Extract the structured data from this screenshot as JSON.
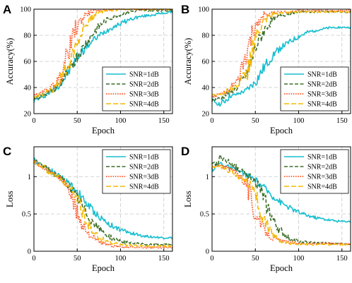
{
  "colors": {
    "SNR=1dB": "#17becf",
    "SNR=2dB": "#3f6f2a",
    "SNR=3dB": "#ff5a2a",
    "SNR=4dB": "#f5b800"
  },
  "chart_data": [
    {
      "panel": "A",
      "type": "line",
      "xlabel": "Epoch",
      "ylabel": "Accuracy(%)",
      "xlim": [
        0,
        160
      ],
      "ylim": [
        20,
        100
      ],
      "xticks": [
        "0",
        "50",
        "100",
        "150"
      ],
      "xtick_values": [
        0,
        50,
        100,
        150
      ],
      "yticks": [
        "20",
        "40",
        "60",
        "80",
        "100"
      ],
      "ytick_values": [
        20,
        40,
        60,
        80,
        100
      ],
      "grid": true,
      "legend_position": "lower-right",
      "x": [
        0,
        10,
        20,
        30,
        40,
        50,
        60,
        70,
        80,
        90,
        100,
        110,
        120,
        130,
        140,
        150,
        160
      ],
      "series": [
        {
          "name": "SNR=1dB",
          "style": "solid",
          "values": [
            30,
            33,
            37,
            42,
            52,
            63,
            71,
            77,
            82,
            86,
            89,
            92,
            94,
            95,
            96,
            97,
            98
          ]
        },
        {
          "name": "SNR=2dB",
          "style": "dashed",
          "values": [
            31,
            34,
            37,
            43,
            53,
            64,
            74,
            83,
            90,
            94,
            96,
            98,
            99,
            99,
            99,
            99,
            99
          ]
        },
        {
          "name": "SNR=3dB",
          "style": "dotted",
          "values": [
            34,
            36,
            40,
            48,
            68,
            88,
            96,
            99,
            99,
            100,
            100,
            100,
            100,
            100,
            100,
            100,
            100
          ]
        },
        {
          "name": "SNR=4dB",
          "style": "longdash",
          "values": [
            32,
            35,
            38,
            45,
            58,
            75,
            88,
            96,
            99,
            99,
            100,
            100,
            100,
            100,
            100,
            100,
            100
          ]
        }
      ]
    },
    {
      "panel": "B",
      "type": "line",
      "xlabel": "Epoch",
      "ylabel": "Accuracy(%)",
      "xlim": [
        0,
        160
      ],
      "ylim": [
        20,
        100
      ],
      "xticks": [
        "0",
        "50",
        "100",
        "150"
      ],
      "xtick_values": [
        0,
        50,
        100,
        150
      ],
      "yticks": [
        "20",
        "40",
        "60",
        "80",
        "100"
      ],
      "ytick_values": [
        20,
        40,
        60,
        80,
        100
      ],
      "grid": true,
      "legend_position": "lower-right",
      "x": [
        0,
        10,
        20,
        30,
        40,
        50,
        60,
        70,
        80,
        90,
        100,
        110,
        120,
        130,
        140,
        150,
        160
      ],
      "series": [
        {
          "name": "SNR=1dB",
          "style": "solid",
          "values": [
            30,
            27,
            33,
            35,
            38,
            44,
            55,
            65,
            71,
            75,
            79,
            82,
            84,
            85,
            86,
            86,
            86
          ]
        },
        {
          "name": "SNR=2dB",
          "style": "dashed",
          "values": [
            30,
            32,
            36,
            40,
            50,
            70,
            84,
            92,
            95,
            97,
            98,
            98,
            98,
            98,
            98,
            98,
            98
          ]
        },
        {
          "name": "SNR=3dB",
          "style": "dotted",
          "values": [
            33,
            35,
            38,
            45,
            65,
            88,
            95,
            97,
            98,
            98,
            99,
            99,
            99,
            99,
            99,
            99,
            99
          ]
        },
        {
          "name": "SNR=4dB",
          "style": "longdash",
          "values": [
            34,
            35,
            38,
            42,
            52,
            78,
            90,
            96,
            97,
            98,
            98,
            98,
            98,
            98,
            98,
            98,
            98
          ]
        }
      ]
    },
    {
      "panel": "C",
      "type": "line",
      "xlabel": "Epoch",
      "ylabel": "Loss",
      "xlim": [
        0,
        160
      ],
      "ylim": [
        0,
        1.4
      ],
      "xticks": [
        "0",
        "50",
        "100",
        "150"
      ],
      "xtick_values": [
        0,
        50,
        100,
        150
      ],
      "yticks": [
        "0",
        "0.5",
        "1"
      ],
      "ytick_values": [
        0,
        0.5,
        1
      ],
      "grid": true,
      "legend_position": "upper-right",
      "x": [
        0,
        10,
        20,
        30,
        40,
        50,
        60,
        70,
        80,
        90,
        100,
        110,
        120,
        130,
        140,
        150,
        160
      ],
      "series": [
        {
          "name": "SNR=1dB",
          "style": "solid",
          "values": [
            1.22,
            1.15,
            1.08,
            1.0,
            0.92,
            0.8,
            0.65,
            0.52,
            0.42,
            0.34,
            0.29,
            0.25,
            0.22,
            0.2,
            0.19,
            0.18,
            0.18
          ]
        },
        {
          "name": "SNR=2dB",
          "style": "dashed",
          "values": [
            1.21,
            1.14,
            1.07,
            0.99,
            0.88,
            0.72,
            0.52,
            0.36,
            0.25,
            0.18,
            0.14,
            0.11,
            0.1,
            0.09,
            0.09,
            0.09,
            0.09
          ]
        },
        {
          "name": "SNR=3dB",
          "style": "dotted",
          "values": [
            1.2,
            1.13,
            1.06,
            0.98,
            0.85,
            0.5,
            0.28,
            0.16,
            0.1,
            0.07,
            0.06,
            0.05,
            0.05,
            0.05,
            0.05,
            0.05,
            0.05
          ]
        },
        {
          "name": "SNR=4dB",
          "style": "longdash",
          "values": [
            1.2,
            1.13,
            1.05,
            0.97,
            0.88,
            0.72,
            0.42,
            0.24,
            0.15,
            0.11,
            0.09,
            0.08,
            0.07,
            0.07,
            0.07,
            0.07,
            0.07
          ]
        }
      ]
    },
    {
      "panel": "D",
      "type": "line",
      "xlabel": "Epoch",
      "ylabel": "Loss",
      "xlim": [
        0,
        160
      ],
      "ylim": [
        0,
        1.4
      ],
      "xticks": [
        "0",
        "50",
        "100",
        "150"
      ],
      "xtick_values": [
        0,
        50,
        100,
        150
      ],
      "yticks": [
        "0",
        "0.5",
        "1"
      ],
      "ytick_values": [
        0,
        0.5,
        1
      ],
      "grid": true,
      "legend_position": "upper-right",
      "x": [
        0,
        10,
        20,
        30,
        40,
        50,
        60,
        70,
        80,
        90,
        100,
        110,
        120,
        130,
        140,
        150,
        160
      ],
      "series": [
        {
          "name": "SNR=1dB",
          "style": "solid",
          "values": [
            1.1,
            1.18,
            1.12,
            1.08,
            1.02,
            0.95,
            0.85,
            0.74,
            0.65,
            0.58,
            0.52,
            0.48,
            0.45,
            0.43,
            0.41,
            0.4,
            0.4
          ]
        },
        {
          "name": "SNR=2dB",
          "style": "dashed",
          "values": [
            1.12,
            1.25,
            1.2,
            1.1,
            1.04,
            0.95,
            0.7,
            0.42,
            0.25,
            0.17,
            0.13,
            0.12,
            0.11,
            0.11,
            0.1,
            0.1,
            0.1
          ]
        },
        {
          "name": "SNR=3dB",
          "style": "dotted",
          "values": [
            1.12,
            1.15,
            1.1,
            1.05,
            0.9,
            0.5,
            0.28,
            0.18,
            0.14,
            0.12,
            0.11,
            0.1,
            0.1,
            0.1,
            0.1,
            0.1,
            0.1
          ]
        },
        {
          "name": "SNR=4dB",
          "style": "longdash",
          "values": [
            1.13,
            1.14,
            1.08,
            1.0,
            0.95,
            0.78,
            0.42,
            0.22,
            0.14,
            0.11,
            0.1,
            0.09,
            0.09,
            0.09,
            0.09,
            0.09,
            0.09
          ]
        }
      ]
    }
  ]
}
